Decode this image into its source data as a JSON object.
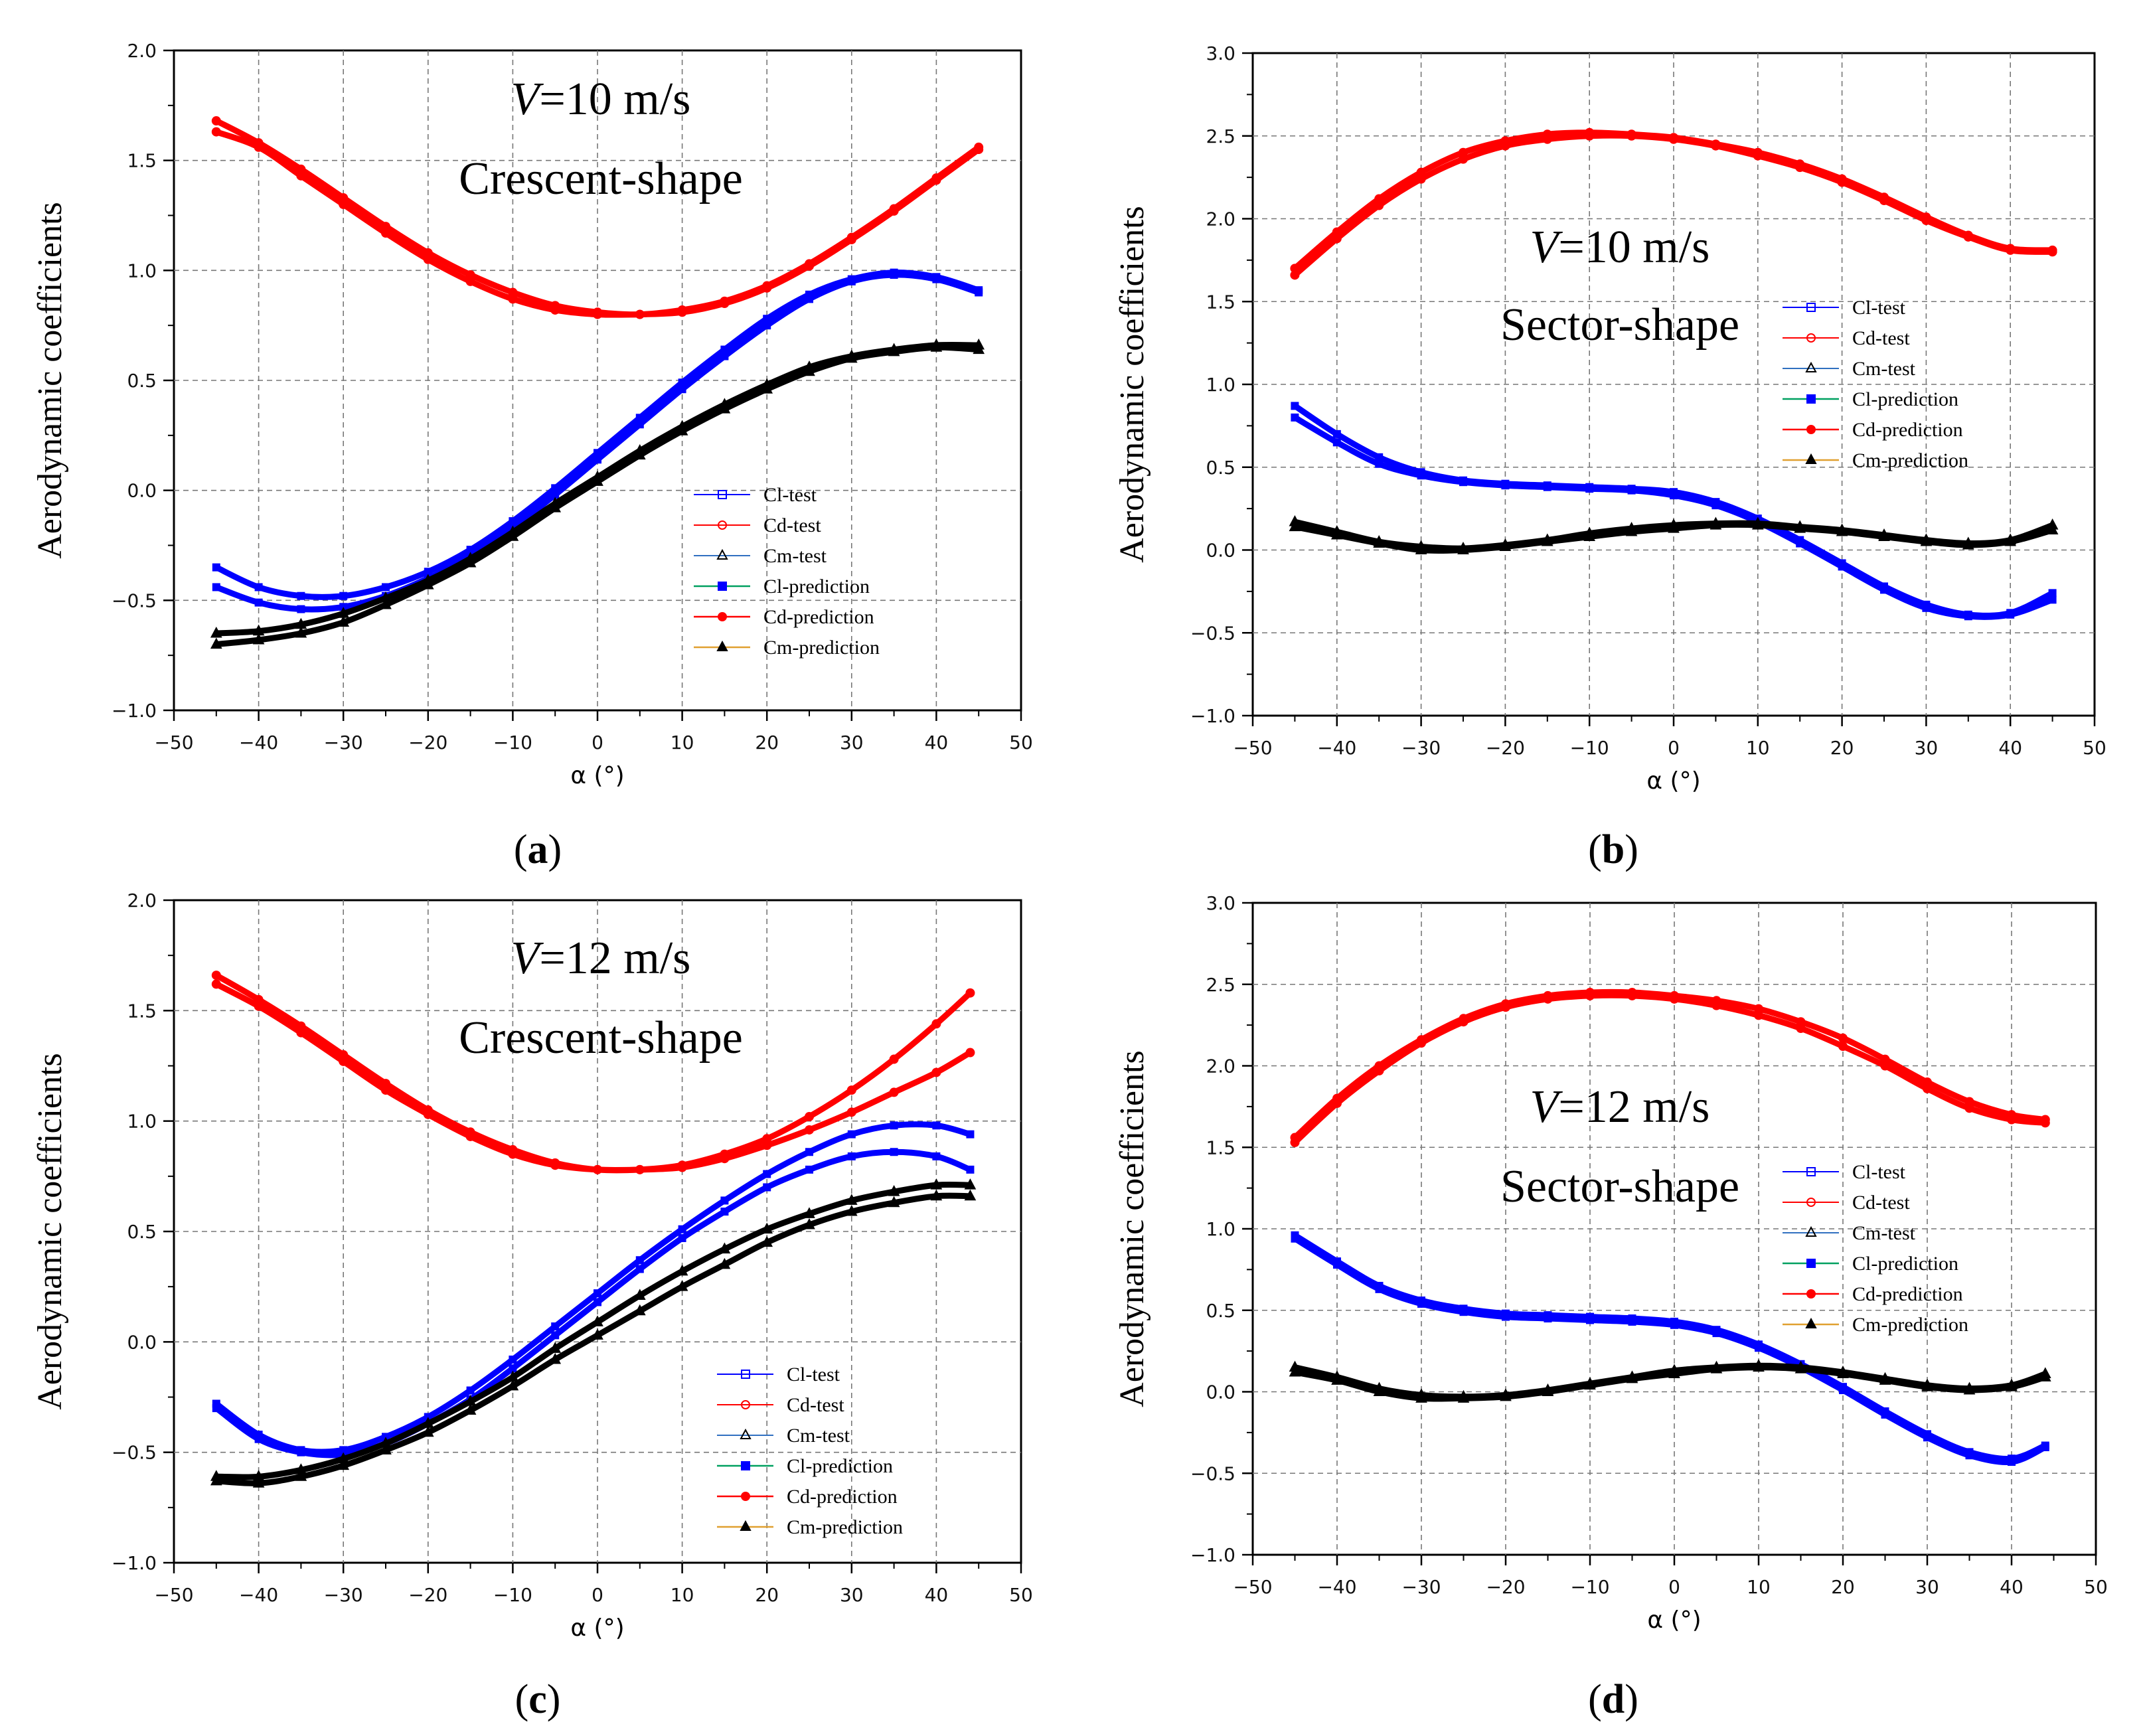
{
  "figure": {
    "panel_prefix": "(",
    "panel_suffix": ")"
  },
  "chart_data": [
    {
      "id": "a",
      "type": "line",
      "panel_label": "a",
      "xlabel": "α (°)",
      "ylabel": "Aerodynamic coefficients",
      "xlim": [
        -50,
        50
      ],
      "ylim": [
        -1.0,
        2.0
      ],
      "xticks": [
        "−50",
        "−40",
        "−30",
        "−20",
        "−10",
        "0",
        "10",
        "20",
        "30",
        "40",
        "50"
      ],
      "yticks": [
        "−1.0",
        "−0.5",
        "0.0",
        "0.5",
        "1.0",
        "1.5",
        "2.0"
      ],
      "annotation_velocity_symbol": "V",
      "annotation_velocity_value": "=10 m/s",
      "annotation_shape": "Crescent-shape",
      "legend_position": "lower-right",
      "legend": [
        "Cl-test",
        "Cd-test",
        "Cm-test",
        "Cl-prediction",
        "Cd-prediction",
        "Cm-prediction"
      ],
      "colors": {
        "Cl": "#0000ff",
        "Cd": "#ff0000",
        "Cm": "#000000",
        "Cm-pred-line": "#e0a030",
        "Cl-pred-line": "#00a060"
      },
      "series": [
        {
          "name": "Cd-test",
          "x": [
            -45,
            -40,
            -35,
            -30,
            -25,
            -20,
            -15,
            -10,
            -5,
            0,
            5,
            10,
            15,
            20,
            25,
            30,
            35,
            40,
            45
          ],
          "up": [
            1.68,
            1.58,
            1.46,
            1.33,
            1.2,
            1.08,
            0.98,
            0.9,
            0.84,
            0.81,
            0.8,
            0.82,
            0.86,
            0.93,
            1.03,
            1.15,
            1.28,
            1.42,
            1.56
          ],
          "down": [
            1.63,
            1.56,
            1.43,
            1.3,
            1.17,
            1.05,
            0.95,
            0.87,
            0.82,
            0.8,
            0.8,
            0.81,
            0.85,
            0.92,
            1.02,
            1.14,
            1.27,
            1.41,
            1.55
          ]
        },
        {
          "name": "Cl-test",
          "x": [
            -45,
            -40,
            -35,
            -30,
            -25,
            -20,
            -15,
            -10,
            -5,
            0,
            5,
            10,
            15,
            20,
            25,
            30,
            35,
            40,
            45
          ],
          "up": [
            -0.35,
            -0.44,
            -0.48,
            -0.48,
            -0.44,
            -0.37,
            -0.27,
            -0.14,
            0.01,
            0.17,
            0.33,
            0.49,
            0.64,
            0.78,
            0.89,
            0.96,
            0.99,
            0.97,
            0.91
          ],
          "down": [
            -0.44,
            -0.51,
            -0.54,
            -0.53,
            -0.48,
            -0.4,
            -0.3,
            -0.17,
            -0.02,
            0.14,
            0.3,
            0.46,
            0.61,
            0.75,
            0.87,
            0.95,
            0.98,
            0.96,
            0.9
          ]
        },
        {
          "name": "Cm-test",
          "x": [
            -45,
            -40,
            -35,
            -30,
            -25,
            -20,
            -15,
            -10,
            -5,
            0,
            5,
            10,
            15,
            20,
            25,
            30,
            35,
            40,
            45
          ],
          "up": [
            -0.65,
            -0.64,
            -0.61,
            -0.56,
            -0.49,
            -0.41,
            -0.31,
            -0.19,
            -0.06,
            0.06,
            0.18,
            0.29,
            0.39,
            0.48,
            0.56,
            0.61,
            0.64,
            0.66,
            0.66
          ],
          "down": [
            -0.7,
            -0.68,
            -0.65,
            -0.6,
            -0.52,
            -0.43,
            -0.33,
            -0.21,
            -0.08,
            0.04,
            0.16,
            0.27,
            0.37,
            0.46,
            0.54,
            0.6,
            0.63,
            0.65,
            0.64
          ]
        }
      ]
    },
    {
      "id": "b",
      "type": "line",
      "panel_label": "b",
      "xlabel": "α (°)",
      "ylabel": "Aerodynamic coefficients",
      "xlim": [
        -50,
        50
      ],
      "ylim": [
        -1.0,
        3.0
      ],
      "xticks": [
        "−50",
        "−40",
        "−30",
        "−20",
        "−10",
        "0",
        "10",
        "20",
        "30",
        "40",
        "50"
      ],
      "yticks": [
        "−1.0",
        "−0.5",
        "0.0",
        "0.5",
        "1.0",
        "1.5",
        "2.0",
        "2.5",
        "3.0"
      ],
      "annotation_velocity_symbol": "V",
      "annotation_velocity_value": "=10 m/s",
      "annotation_shape": "Sector-shape",
      "legend_position": "upper-right",
      "legend": [
        "Cl-test",
        "Cd-test",
        "Cm-test",
        "Cl-prediction",
        "Cd-prediction",
        "Cm-prediction"
      ],
      "colors": {
        "Cl": "#0000ff",
        "Cd": "#ff0000",
        "Cm": "#000000",
        "Cm-pred-line": "#e0a030",
        "Cl-pred-line": "#00a060"
      },
      "series": [
        {
          "name": "Cd-test",
          "x": [
            -45,
            -40,
            -35,
            -30,
            -25,
            -20,
            -15,
            -10,
            -5,
            0,
            5,
            10,
            15,
            20,
            25,
            30,
            35,
            40,
            45
          ],
          "up": [
            1.7,
            1.92,
            2.12,
            2.28,
            2.4,
            2.47,
            2.51,
            2.52,
            2.51,
            2.49,
            2.45,
            2.4,
            2.33,
            2.24,
            2.13,
            2.01,
            1.9,
            1.82,
            1.81
          ],
          "down": [
            1.66,
            1.88,
            2.08,
            2.24,
            2.36,
            2.44,
            2.48,
            2.5,
            2.5,
            2.48,
            2.44,
            2.38,
            2.31,
            2.22,
            2.11,
            1.99,
            1.89,
            1.81,
            1.8
          ]
        },
        {
          "name": "Cl-test",
          "x": [
            -45,
            -40,
            -35,
            -30,
            -25,
            -20,
            -15,
            -10,
            -5,
            0,
            5,
            10,
            15,
            20,
            25,
            30,
            35,
            40,
            45
          ],
          "up": [
            0.87,
            0.7,
            0.56,
            0.47,
            0.42,
            0.4,
            0.39,
            0.38,
            0.37,
            0.35,
            0.29,
            0.19,
            0.06,
            -0.08,
            -0.22,
            -0.33,
            -0.39,
            -0.38,
            -0.26
          ],
          "down": [
            0.8,
            0.65,
            0.52,
            0.45,
            0.41,
            0.39,
            0.38,
            0.37,
            0.36,
            0.33,
            0.27,
            0.17,
            0.04,
            -0.1,
            -0.24,
            -0.35,
            -0.4,
            -0.39,
            -0.3
          ]
        },
        {
          "name": "Cm-test",
          "x": [
            -45,
            -40,
            -35,
            -30,
            -25,
            -20,
            -15,
            -10,
            -5,
            0,
            5,
            10,
            15,
            20,
            25,
            30,
            35,
            40,
            45
          ],
          "up": [
            0.17,
            0.11,
            0.05,
            0.02,
            0.01,
            0.03,
            0.06,
            0.1,
            0.13,
            0.15,
            0.16,
            0.16,
            0.14,
            0.12,
            0.09,
            0.06,
            0.04,
            0.06,
            0.15
          ],
          "down": [
            0.14,
            0.09,
            0.04,
            0.0,
            0.0,
            0.02,
            0.05,
            0.08,
            0.11,
            0.13,
            0.15,
            0.15,
            0.13,
            0.11,
            0.08,
            0.05,
            0.03,
            0.05,
            0.12
          ]
        }
      ]
    },
    {
      "id": "c",
      "type": "line",
      "panel_label": "c",
      "xlabel": "α (°)",
      "ylabel": "Aerodynamic coefficients",
      "xlim": [
        -50,
        50
      ],
      "ylim": [
        -1.0,
        2.0
      ],
      "xticks": [
        "−50",
        "−40",
        "−30",
        "−20",
        "−10",
        "0",
        "10",
        "20",
        "30",
        "40",
        "50"
      ],
      "yticks": [
        "−1.0",
        "−0.5",
        "0.0",
        "0.5",
        "1.0",
        "1.5",
        "2.0"
      ],
      "annotation_velocity_symbol": "V",
      "annotation_velocity_value": "=12 m/s",
      "annotation_shape": "Crescent-shape",
      "legend_position": "lower-right",
      "legend": [
        "Cl-test",
        "Cd-test",
        "Cm-test",
        "Cl-prediction",
        "Cd-prediction",
        "Cm-prediction"
      ],
      "colors": {
        "Cl": "#0000ff",
        "Cd": "#ff0000",
        "Cm": "#000000",
        "Cm-pred-line": "#e0a030",
        "Cl-pred-line": "#00a060"
      },
      "series": [
        {
          "name": "Cd-test",
          "x": [
            -45,
            -40,
            -35,
            -30,
            -25,
            -20,
            -15,
            -10,
            -5,
            0,
            5,
            10,
            15,
            20,
            25,
            30,
            35,
            40,
            44
          ],
          "up": [
            1.66,
            1.55,
            1.43,
            1.3,
            1.17,
            1.05,
            0.95,
            0.87,
            0.81,
            0.78,
            0.78,
            0.8,
            0.85,
            0.92,
            1.02,
            1.14,
            1.28,
            1.44,
            1.58
          ],
          "down": [
            1.62,
            1.52,
            1.4,
            1.27,
            1.14,
            1.03,
            0.93,
            0.85,
            0.8,
            0.78,
            0.78,
            0.79,
            0.83,
            0.89,
            0.96,
            1.04,
            1.13,
            1.22,
            1.31
          ]
        },
        {
          "name": "Cl-test",
          "x": [
            -45,
            -40,
            -35,
            -30,
            -25,
            -20,
            -15,
            -10,
            -5,
            0,
            5,
            10,
            15,
            20,
            25,
            30,
            35,
            40,
            44
          ],
          "up": [
            -0.28,
            -0.42,
            -0.49,
            -0.49,
            -0.43,
            -0.34,
            -0.22,
            -0.08,
            0.07,
            0.22,
            0.37,
            0.51,
            0.64,
            0.76,
            0.86,
            0.94,
            0.98,
            0.98,
            0.94
          ],
          "down": [
            -0.3,
            -0.44,
            -0.5,
            -0.51,
            -0.46,
            -0.37,
            -0.26,
            -0.12,
            0.03,
            0.18,
            0.33,
            0.47,
            0.59,
            0.7,
            0.78,
            0.84,
            0.86,
            0.84,
            0.78
          ]
        },
        {
          "name": "Cm-test",
          "x": [
            -45,
            -40,
            -35,
            -30,
            -25,
            -20,
            -15,
            -10,
            -5,
            0,
            5,
            10,
            15,
            20,
            25,
            30,
            35,
            40,
            44
          ],
          "up": [
            -0.61,
            -0.61,
            -0.58,
            -0.53,
            -0.46,
            -0.37,
            -0.27,
            -0.16,
            -0.03,
            0.09,
            0.21,
            0.32,
            0.42,
            0.51,
            0.58,
            0.64,
            0.68,
            0.71,
            0.71
          ],
          "down": [
            -0.63,
            -0.64,
            -0.61,
            -0.56,
            -0.49,
            -0.41,
            -0.31,
            -0.2,
            -0.08,
            0.03,
            0.14,
            0.25,
            0.35,
            0.45,
            0.53,
            0.59,
            0.63,
            0.66,
            0.66
          ]
        }
      ]
    },
    {
      "id": "d",
      "type": "line",
      "panel_label": "d",
      "xlabel": "α (°)",
      "ylabel": "Aerodynamic coefficients",
      "xlim": [
        -50,
        50
      ],
      "ylim": [
        -1.0,
        3.0
      ],
      "xticks": [
        "−50",
        "−40",
        "−30",
        "−20",
        "−10",
        "0",
        "10",
        "20",
        "30",
        "40",
        "50"
      ],
      "yticks": [
        "−1.0",
        "−0.5",
        "0.0",
        "0.5",
        "1.0",
        "1.5",
        "2.0",
        "2.5",
        "3.0"
      ],
      "annotation_velocity_symbol": "V",
      "annotation_velocity_value": "=12 m/s",
      "annotation_shape": "Sector-shape",
      "legend_position": "right",
      "legend": [
        "Cl-test",
        "Cd-test",
        "Cm-test",
        "Cl-prediction",
        "Cd-prediction",
        "Cm-prediction"
      ],
      "colors": {
        "Cl": "#0000ff",
        "Cd": "#ff0000",
        "Cm": "#000000",
        "Cm-pred-line": "#e0a030",
        "Cl-pred-line": "#00a060"
      },
      "series": [
        {
          "name": "Cd-test",
          "x": [
            -45,
            -40,
            -35,
            -30,
            -25,
            -20,
            -15,
            -10,
            -5,
            0,
            5,
            10,
            15,
            20,
            25,
            30,
            35,
            40,
            44
          ],
          "up": [
            1.56,
            1.8,
            2.0,
            2.16,
            2.29,
            2.38,
            2.43,
            2.45,
            2.45,
            2.43,
            2.4,
            2.35,
            2.27,
            2.17,
            2.04,
            1.9,
            1.78,
            1.7,
            1.67
          ],
          "down": [
            1.53,
            1.77,
            1.97,
            2.14,
            2.27,
            2.36,
            2.41,
            2.43,
            2.43,
            2.41,
            2.37,
            2.31,
            2.23,
            2.12,
            2.0,
            1.86,
            1.74,
            1.67,
            1.65
          ]
        },
        {
          "name": "Cl-test",
          "x": [
            -45,
            -40,
            -35,
            -30,
            -25,
            -20,
            -15,
            -10,
            -5,
            0,
            5,
            10,
            15,
            20,
            25,
            30,
            35,
            40,
            44
          ],
          "up": [
            0.96,
            0.8,
            0.65,
            0.56,
            0.51,
            0.48,
            0.47,
            0.46,
            0.45,
            0.43,
            0.38,
            0.29,
            0.17,
            0.03,
            -0.12,
            -0.26,
            -0.37,
            -0.41,
            -0.33
          ],
          "down": [
            0.94,
            0.78,
            0.63,
            0.54,
            0.49,
            0.46,
            0.45,
            0.44,
            0.43,
            0.41,
            0.36,
            0.27,
            0.15,
            0.01,
            -0.14,
            -0.28,
            -0.39,
            -0.43,
            -0.34
          ]
        },
        {
          "name": "Cm-test",
          "x": [
            -45,
            -40,
            -35,
            -30,
            -25,
            -20,
            -15,
            -10,
            -5,
            0,
            5,
            10,
            15,
            20,
            25,
            30,
            35,
            40,
            44
          ],
          "up": [
            0.15,
            0.09,
            0.02,
            -0.02,
            -0.03,
            -0.02,
            0.01,
            0.05,
            0.09,
            0.13,
            0.15,
            0.16,
            0.15,
            0.12,
            0.08,
            0.04,
            0.02,
            0.04,
            0.11
          ],
          "down": [
            0.12,
            0.07,
            0.0,
            -0.04,
            -0.04,
            -0.03,
            0.0,
            0.04,
            0.08,
            0.11,
            0.14,
            0.15,
            0.14,
            0.11,
            0.07,
            0.03,
            0.01,
            0.03,
            0.09
          ]
        }
      ]
    }
  ]
}
